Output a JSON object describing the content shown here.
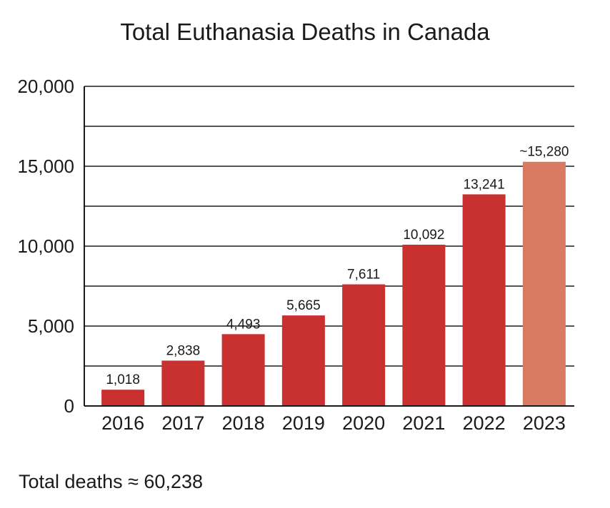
{
  "chart_data": {
    "type": "bar",
    "title": "Total Euthanasia Deaths in Canada",
    "categories": [
      "2016",
      "2017",
      "2018",
      "2019",
      "2020",
      "2021",
      "2022",
      "2023"
    ],
    "values": [
      1018,
      2838,
      4493,
      5665,
      7611,
      10092,
      13241,
      15280
    ],
    "data_labels": [
      "1,018",
      "2,838",
      "4,493",
      "5,665",
      "7,611",
      "10,092",
      "13,241",
      "~15,280"
    ],
    "ylim": [
      0,
      20000
    ],
    "y_ticks": [
      0,
      5000,
      10000,
      15000,
      20000
    ],
    "y_tick_labels": [
      "0",
      "5,000",
      "10,000",
      "15,000",
      "20,000"
    ],
    "gridlines_every": 2500,
    "grid": true,
    "xlabel": "",
    "ylabel": "",
    "colors": {
      "bar": "#c8312f",
      "bar_estimate": "#d97b62",
      "grid": "#1a1a1a",
      "text": "#1a1a1a"
    },
    "estimated_categories": [
      "2023"
    ],
    "footer": "Total deaths ≈ 60,238"
  }
}
